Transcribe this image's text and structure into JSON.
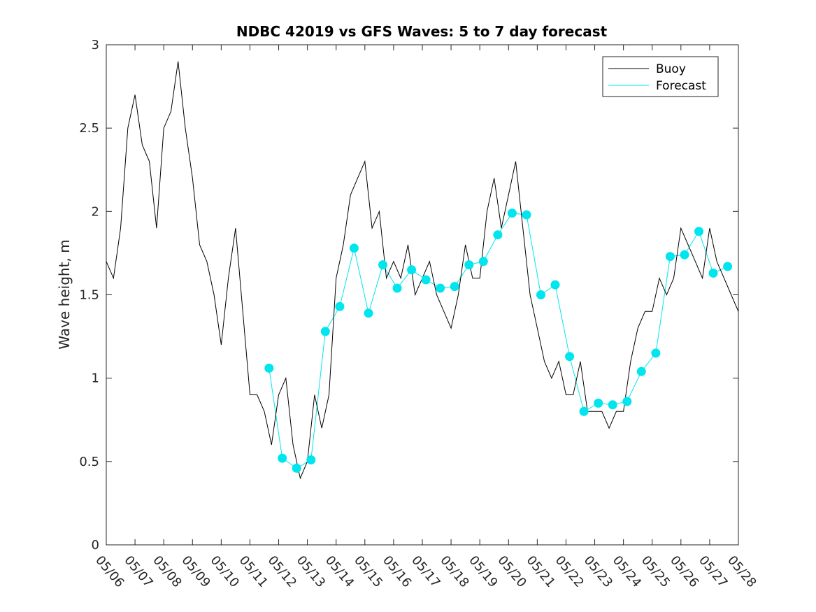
{
  "chart_data": {
    "type": "line",
    "title": "NDBC 42019 vs GFS Waves: 5 to 7 day forecast",
    "xlabel": "",
    "ylabel": "Wave height, m",
    "xlim": [
      "05/06",
      "05/28"
    ],
    "ylim": [
      0,
      3
    ],
    "yticks": [
      0,
      0.5,
      1,
      1.5,
      2,
      2.5,
      3
    ],
    "xticks": [
      "05/06",
      "05/07",
      "05/08",
      "05/09",
      "05/10",
      "05/11",
      "05/12",
      "05/13",
      "05/14",
      "05/15",
      "05/16",
      "05/17",
      "05/18",
      "05/19",
      "05/20",
      "05/21",
      "05/22",
      "05/23",
      "05/24",
      "05/25",
      "05/26",
      "05/27",
      "05/28"
    ],
    "grid": false,
    "legend": {
      "location": "top-right",
      "entries": [
        "Buoy",
        "Forecast"
      ]
    },
    "colors": {
      "buoy": "#000000",
      "forecast": "#00e5ee"
    },
    "series": [
      {
        "name": "Buoy",
        "x": [
          "05/06 00:00",
          "05/06 06:00",
          "05/06 12:00",
          "05/06 18:00",
          "05/07 00:00",
          "05/07 06:00",
          "05/07 12:00",
          "05/07 18:00",
          "05/08 00:00",
          "05/08 06:00",
          "05/08 12:00",
          "05/08 18:00",
          "05/09 00:00",
          "05/09 06:00",
          "05/09 12:00",
          "05/09 18:00",
          "05/10 00:00",
          "05/10 06:00",
          "05/10 12:00",
          "05/10 18:00",
          "05/11 00:00",
          "05/11 06:00",
          "05/11 12:00",
          "05/11 18:00",
          "05/12 00:00",
          "05/12 06:00",
          "05/12 12:00",
          "05/12 18:00",
          "05/13 00:00",
          "05/13 06:00",
          "05/13 12:00",
          "05/13 18:00",
          "05/14 00:00",
          "05/14 06:00",
          "05/14 12:00",
          "05/14 18:00",
          "05/15 00:00",
          "05/15 06:00",
          "05/15 12:00",
          "05/15 18:00",
          "05/16 00:00",
          "05/16 06:00",
          "05/16 12:00",
          "05/16 18:00",
          "05/17 00:00",
          "05/17 06:00",
          "05/17 12:00",
          "05/17 18:00",
          "05/18 00:00",
          "05/18 06:00",
          "05/18 12:00",
          "05/18 18:00",
          "05/19 00:00",
          "05/19 06:00",
          "05/19 12:00",
          "05/19 18:00",
          "05/20 00:00",
          "05/20 06:00",
          "05/20 12:00",
          "05/20 18:00",
          "05/21 00:00",
          "05/21 06:00",
          "05/21 12:00",
          "05/21 18:00",
          "05/22 00:00",
          "05/22 06:00",
          "05/22 12:00",
          "05/22 18:00",
          "05/23 00:00",
          "05/23 06:00",
          "05/23 12:00",
          "05/23 18:00",
          "05/24 00:00",
          "05/24 06:00",
          "05/24 12:00",
          "05/24 18:00",
          "05/25 00:00",
          "05/25 06:00",
          "05/25 12:00",
          "05/25 18:00",
          "05/26 00:00",
          "05/26 06:00",
          "05/26 12:00",
          "05/26 18:00",
          "05/27 00:00",
          "05/27 06:00",
          "05/27 12:00",
          "05/27 18:00",
          "05/28 00:00"
        ],
        "y": [
          1.7,
          1.6,
          1.9,
          2.5,
          2.7,
          2.4,
          2.3,
          1.9,
          2.5,
          2.6,
          2.9,
          2.5,
          2.2,
          1.8,
          1.7,
          1.5,
          1.2,
          1.6,
          1.9,
          1.4,
          0.9,
          0.9,
          0.8,
          0.6,
          0.9,
          1.0,
          0.6,
          0.4,
          0.5,
          0.9,
          0.7,
          0.9,
          1.6,
          1.8,
          2.1,
          2.2,
          2.3,
          1.9,
          2.0,
          1.6,
          1.7,
          1.6,
          1.8,
          1.5,
          1.6,
          1.7,
          1.5,
          1.4,
          1.3,
          1.5,
          1.8,
          1.6,
          1.6,
          2.0,
          2.2,
          1.9,
          2.1,
          2.3,
          1.9,
          1.5,
          1.3,
          1.1,
          1.0,
          1.1,
          0.9,
          0.9,
          1.1,
          0.8,
          0.8,
          0.8,
          0.7,
          0.8,
          0.8,
          1.1,
          1.3,
          1.4,
          1.4,
          1.6,
          1.5,
          1.6,
          1.9,
          1.8,
          1.7,
          1.6,
          1.9,
          1.7,
          1.6,
          1.5,
          1.4
        ]
      },
      {
        "name": "Forecast",
        "markers": {
          "x": [
            "05/11 16:00",
            "05/12 03:00",
            "05/12 15:00",
            "05/13 03:00",
            "05/13 15:00",
            "05/14 03:00",
            "05/14 15:00",
            "05/15 03:00",
            "05/15 15:00",
            "05/16 03:00",
            "05/16 15:00",
            "05/17 03:00",
            "05/17 15:00",
            "05/18 03:00",
            "05/18 15:00",
            "05/19 03:00",
            "05/19 15:00",
            "05/20 03:00",
            "05/20 15:00",
            "05/21 03:00",
            "05/21 15:00",
            "05/22 03:00",
            "05/22 15:00",
            "05/23 03:00",
            "05/23 15:00",
            "05/24 03:00",
            "05/24 15:00",
            "05/25 03:00",
            "05/25 15:00",
            "05/26 03:00",
            "05/26 15:00",
            "05/27 03:00",
            "05/27 15:00"
          ],
          "y": [
            1.06,
            0.52,
            0.46,
            0.51,
            1.28,
            1.43,
            1.78,
            1.39,
            1.68,
            1.54,
            1.65,
            1.59,
            1.54,
            1.55,
            1.68,
            1.7,
            1.86,
            1.99,
            1.98,
            1.5,
            1.56,
            1.13,
            0.8,
            0.85,
            0.84,
            0.86,
            1.04,
            1.15,
            1.73,
            1.74,
            1.88,
            1.63,
            1.67
          ]
        }
      }
    ]
  }
}
